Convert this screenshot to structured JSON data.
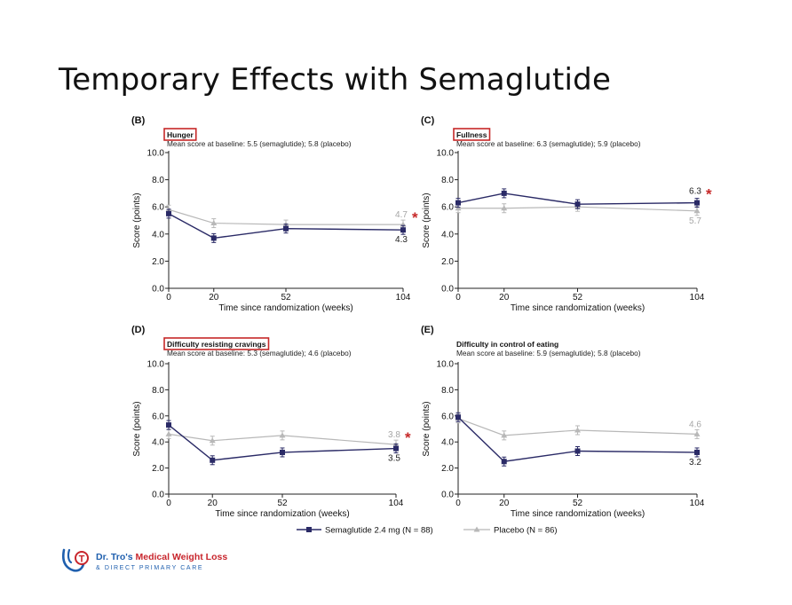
{
  "slide_title": "Temporary Effects with Semaglutide",
  "colors": {
    "semaglutide": "#2a2a66",
    "placebo": "#b8b8b8",
    "highlight_box": "#c62828",
    "star": "#c62828",
    "logo_blue": "#1f5fae",
    "logo_red": "#c8262d"
  },
  "logo": {
    "name_part1": "Dr. Tro's ",
    "name_part2": "Medical Weight Loss",
    "tagline": "& DIRECT PRIMARY CARE",
    "icon": "stethoscope-t-icon"
  },
  "legend": {
    "series1": "Semaglutide 2.4 mg (N = 88)",
    "series2": "Placebo (N = 86)"
  },
  "chart_data": [
    {
      "type": "line",
      "panel": "(B)",
      "title": "Hunger",
      "highlighted": true,
      "subtitle": "Mean score at baseline: 5.5 (semaglutide); 5.8 (placebo)",
      "xlabel": "Time since randomization (weeks)",
      "ylabel": "Score (points)",
      "ylim": [
        0,
        10
      ],
      "yticks": [
        "0.0",
        "2.0",
        "4.0",
        "6.0",
        "8.0",
        "10.0"
      ],
      "x": [
        0,
        20,
        52,
        104
      ],
      "xtick_labels": [
        "0",
        "20",
        "52",
        "104"
      ],
      "series": [
        {
          "name": "Semaglutide 2.4 mg (N = 88)",
          "values": [
            5.5,
            3.7,
            4.4,
            4.3
          ],
          "end_label": "4.3"
        },
        {
          "name": "Placebo (N = 86)",
          "values": [
            5.8,
            4.8,
            4.7,
            4.7
          ],
          "end_label": "4.7"
        }
      ],
      "star": "*"
    },
    {
      "type": "line",
      "panel": "(C)",
      "title": "Fullness",
      "highlighted": true,
      "subtitle": "Mean score at baseline: 6.3 (semaglutide); 5.9 (placebo)",
      "xlabel": "Time since randomization (weeks)",
      "ylabel": "Score (points)",
      "ylim": [
        0,
        10
      ],
      "yticks": [
        "0.0",
        "2.0",
        "4.0",
        "6.0",
        "8.0",
        "10.0"
      ],
      "x": [
        0,
        20,
        52,
        104
      ],
      "xtick_labels": [
        "0",
        "20",
        "52",
        "104"
      ],
      "series": [
        {
          "name": "Semaglutide 2.4 mg (N = 88)",
          "values": [
            6.3,
            7.0,
            6.2,
            6.3
          ],
          "end_label": "6.3"
        },
        {
          "name": "Placebo (N = 86)",
          "values": [
            5.9,
            5.9,
            6.0,
            5.7
          ],
          "end_label": "5.7"
        }
      ],
      "star": "*"
    },
    {
      "type": "line",
      "panel": "(D)",
      "title": "Difficulty resisting cravings",
      "highlighted": true,
      "subtitle": "Mean score at baseline: 5.3 (semaglutide); 4.6 (placebo)",
      "xlabel": "Time since randomization (weeks)",
      "ylabel": "Score (points)",
      "ylim": [
        0,
        10
      ],
      "yticks": [
        "0.0",
        "2.0",
        "4.0",
        "6.0",
        "8.0",
        "10.0"
      ],
      "x": [
        0,
        20,
        52,
        104
      ],
      "xtick_labels": [
        "0",
        "20",
        "52",
        "104"
      ],
      "series": [
        {
          "name": "Semaglutide 2.4 mg (N = 88)",
          "values": [
            5.3,
            2.6,
            3.2,
            3.5
          ],
          "end_label": "3.5"
        },
        {
          "name": "Placebo (N = 86)",
          "values": [
            4.6,
            4.1,
            4.5,
            3.8
          ],
          "end_label": "3.8"
        }
      ],
      "star": "*"
    },
    {
      "type": "line",
      "panel": "(E)",
      "title": "Difficulty in control of eating",
      "highlighted": false,
      "subtitle": "Mean score at baseline: 5.9 (semaglutide); 5.8 (placebo)",
      "xlabel": "Time since randomization (weeks)",
      "ylabel": "Score (points)",
      "ylim": [
        0,
        10
      ],
      "yticks": [
        "0.0",
        "2.0",
        "4.0",
        "6.0",
        "8.0",
        "10.0"
      ],
      "x": [
        0,
        20,
        52,
        104
      ],
      "xtick_labels": [
        "0",
        "20",
        "52",
        "104"
      ],
      "series": [
        {
          "name": "Semaglutide 2.4 mg (N = 88)",
          "values": [
            5.9,
            2.5,
            3.3,
            3.2
          ],
          "end_label": "3.2"
        },
        {
          "name": "Placebo (N = 86)",
          "values": [
            5.8,
            4.5,
            4.9,
            4.6
          ],
          "end_label": "4.6"
        }
      ],
      "star": ""
    }
  ]
}
